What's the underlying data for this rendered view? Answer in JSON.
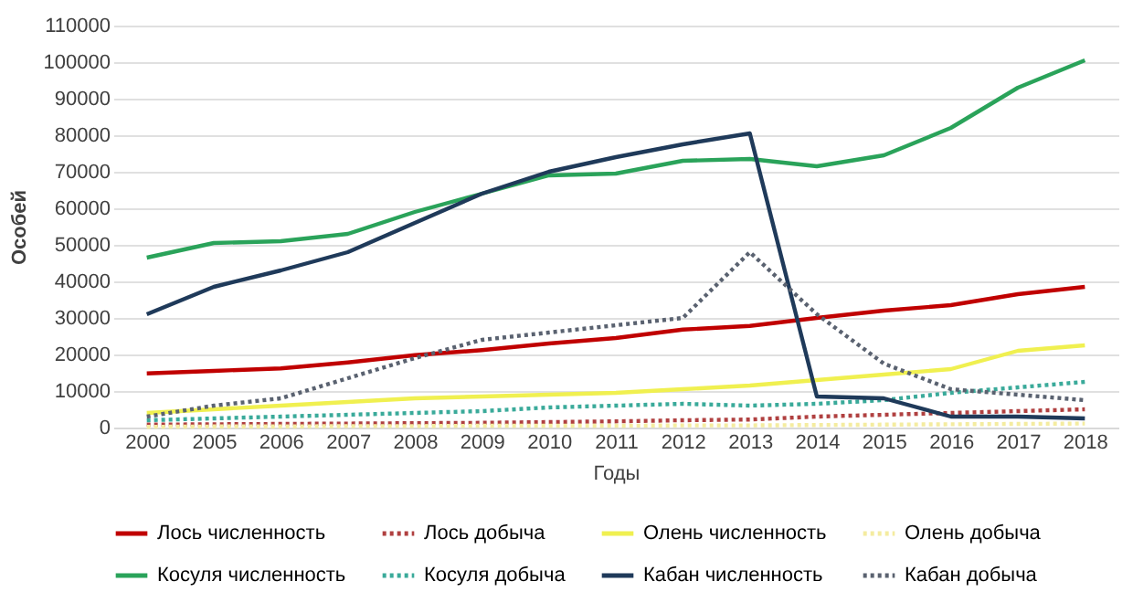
{
  "chart_data": {
    "type": "line",
    "xlabel": "Годы",
    "ylabel": "Особей",
    "categories": [
      "2000",
      "2005",
      "2006",
      "2007",
      "2008",
      "2009",
      "2010",
      "2011",
      "2012",
      "2013",
      "2014",
      "2015",
      "2016",
      "2017",
      "2018"
    ],
    "series": [
      {
        "name": "Лось численность",
        "color": "#c00000",
        "line_style": "solid",
        "values": [
          14800,
          15500,
          16200,
          17800,
          19800,
          21200,
          23000,
          24500,
          26800,
          27800,
          30000,
          32000,
          33500,
          36500,
          38500
        ]
      },
      {
        "name": "Лось добыча",
        "color": "#b04040",
        "line_style": "dotted",
        "values": [
          800,
          900,
          1000,
          1100,
          1200,
          1300,
          1500,
          1700,
          2000,
          2200,
          3000,
          3500,
          4000,
          4500,
          5000
        ]
      },
      {
        "name": "Олень численность",
        "color": "#f0f050",
        "line_style": "solid",
        "values": [
          4000,
          5000,
          6000,
          7000,
          8000,
          8500,
          9000,
          9500,
          10500,
          11500,
          13000,
          14500,
          16000,
          21000,
          22500
        ]
      },
      {
        "name": "Олень добыча",
        "color": "#f4eca0",
        "line_style": "dotted",
        "values": [
          200,
          300,
          300,
          400,
          400,
          500,
          500,
          500,
          600,
          600,
          700,
          800,
          900,
          1000,
          1100
        ]
      },
      {
        "name": "Косуля численность",
        "color": "#2aa35a",
        "line_style": "solid",
        "values": [
          46500,
          50500,
          51000,
          53000,
          59000,
          64000,
          69000,
          69500,
          73000,
          73500,
          71500,
          74500,
          82000,
          93000,
          100500
        ]
      },
      {
        "name": "Косуля добыча",
        "color": "#3aaa9a",
        "line_style": "dotted",
        "values": [
          2000,
          2500,
          3000,
          3500,
          4000,
          4500,
          5500,
          6000,
          6500,
          6000,
          6500,
          7500,
          9500,
          11000,
          12500
        ]
      },
      {
        "name": "Кабан численность",
        "color": "#1f3a5a",
        "line_style": "solid",
        "values": [
          31000,
          38500,
          43000,
          48000,
          56000,
          64000,
          70000,
          74000,
          77500,
          80500,
          8500,
          8000,
          3000,
          3000,
          2500
        ]
      },
      {
        "name": "Кабан добыча",
        "color": "#5a6270",
        "line_style": "dotted",
        "values": [
          3000,
          6000,
          8000,
          13500,
          19000,
          24000,
          26000,
          28000,
          30000,
          48000,
          31000,
          17500,
          10500,
          9000,
          7500
        ]
      }
    ],
    "ylim": [
      0,
      110000
    ],
    "yticks": [
      0,
      10000,
      20000,
      30000,
      40000,
      50000,
      60000,
      70000,
      80000,
      90000,
      100000,
      110000
    ],
    "grid": "y",
    "legend": "bottom"
  }
}
